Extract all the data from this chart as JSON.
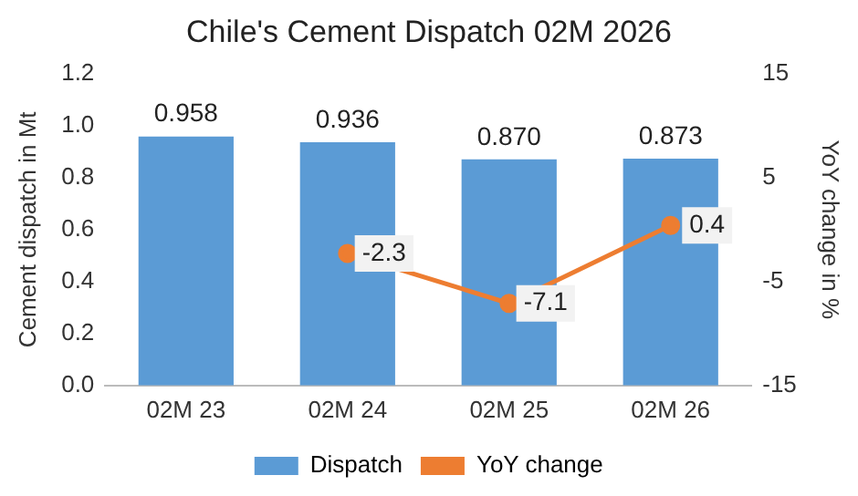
{
  "chart_data": {
    "type": "bar",
    "title": "Chile's Cement Dispatch 02M 2026",
    "ylabel": "Cement dispatch in Mt",
    "y2label": "YoY change in %",
    "categories": [
      "02M 23",
      "02M 24",
      "02M 25",
      "02M 26"
    ],
    "series": [
      {
        "name": "Dispatch",
        "color": "#5b9bd5",
        "values": [
          0.958,
          0.936,
          0.87,
          0.873
        ],
        "value_labels": [
          "0.958",
          "0.936",
          "0.870",
          "0.873"
        ]
      },
      {
        "name": "YoY change",
        "type": "line",
        "axis": "y2",
        "color": "#ed7d31",
        "marker": "circle",
        "values": [
          null,
          -2.3,
          -7.1,
          0.4
        ],
        "value_labels": [
          null,
          "-2.3",
          "-7.1",
          "0.4"
        ]
      }
    ],
    "ylim": [
      0,
      1.2
    ],
    "yticks": [
      {
        "value": 0,
        "label": "0.0"
      },
      0.2,
      0.4,
      0.6,
      0.8,
      {
        "value": 1,
        "label": "1.0"
      },
      1.2
    ],
    "y2lim": [
      -15,
      15
    ],
    "y2ticks": [
      -15,
      -5,
      5,
      15
    ],
    "grid": false,
    "legend": "bottom"
  }
}
